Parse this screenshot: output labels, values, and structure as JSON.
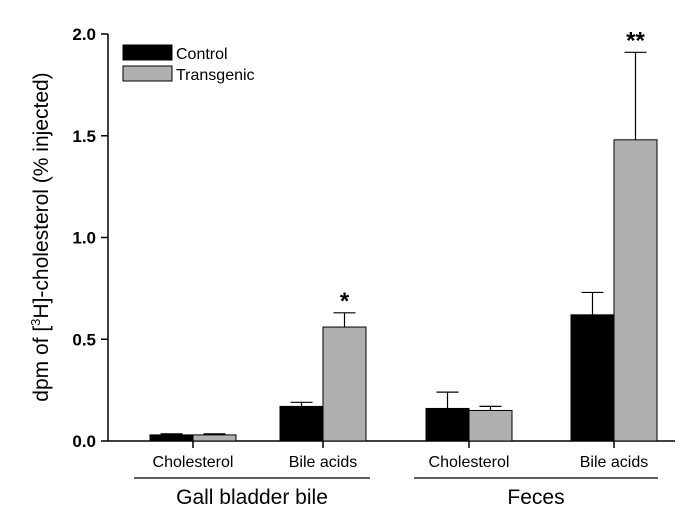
{
  "chart_data": {
    "type": "bar",
    "ylabel_parts": [
      "dpm of [",
      "3",
      "H]-cholesterol (% injected)"
    ],
    "ylim": [
      0,
      2.0
    ],
    "yticks": [
      "0.0",
      "0.5",
      "1.0",
      "1.5",
      "2.0"
    ],
    "categories": [
      "Cholesterol",
      "Bile acids",
      "Cholesterol",
      "Bile acids"
    ],
    "groups": [
      {
        "label": "Gall bladder bile",
        "categories": [
          0,
          1
        ]
      },
      {
        "label": "Feces",
        "categories": [
          2,
          3
        ]
      }
    ],
    "series": [
      {
        "name": "Control",
        "color": "#000000",
        "values": [
          0.03,
          0.17,
          0.16,
          0.62
        ],
        "errors": [
          0.005,
          0.02,
          0.08,
          0.11
        ]
      },
      {
        "name": "Transgenic",
        "color": "#b0b0b0",
        "values": [
          0.03,
          0.56,
          0.15,
          1.48
        ],
        "errors": [
          0.005,
          0.07,
          0.02,
          0.43
        ]
      }
    ],
    "annotations": [
      {
        "text": "*",
        "category": 1,
        "series": 1
      },
      {
        "text": "**",
        "category": 3,
        "series": 1
      }
    ],
    "legend_position": "top-left",
    "grid": false
  }
}
